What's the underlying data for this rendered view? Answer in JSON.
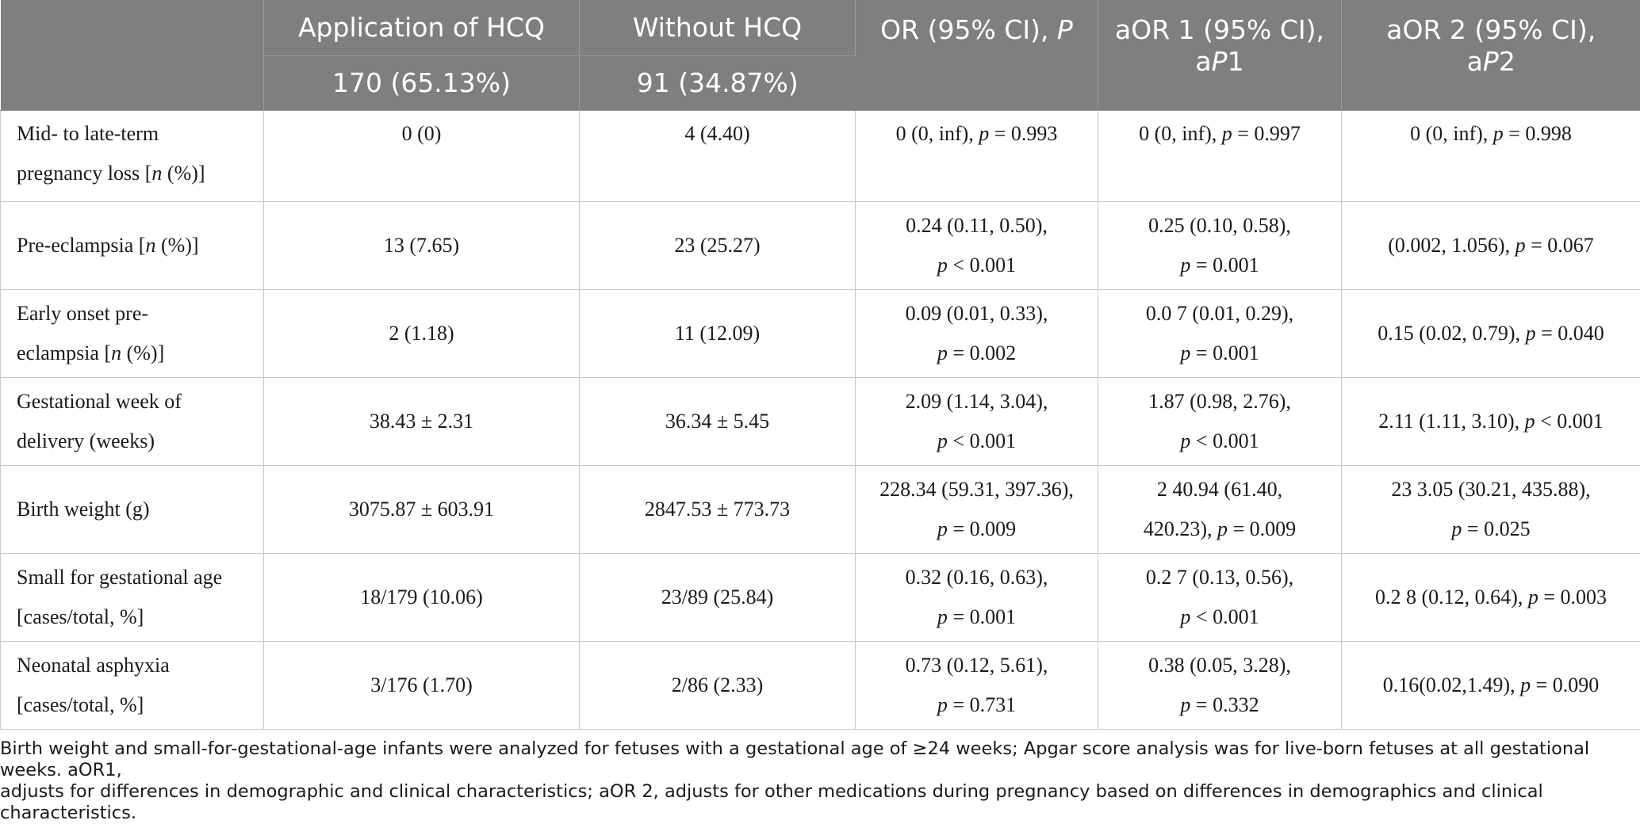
{
  "header": {
    "col0": "",
    "col1_title": "Application of HCQ",
    "col1_sub": "170 (65.13%)",
    "col2_title": "Without HCQ",
    "col2_sub": "91 (34.87%)",
    "col3": {
      "a": "OR (95% CI), ",
      "b": "P"
    },
    "col4": {
      "a": "aOR 1 (95% CI),",
      "b": "a",
      "c": "P",
      "d": "1"
    },
    "col5": {
      "a": "aOR 2 (95% CI),",
      "b": "a",
      "c": "P",
      "d": "2"
    }
  },
  "rows": [
    {
      "label": [
        "Mid- to late-term",
        "pregnancy loss [",
        "n",
        " (%)]"
      ],
      "hcq": "0 (0)",
      "without": "4 (4.40)",
      "or": [
        "0 (0, inf), ",
        "p",
        " = 0.993"
      ],
      "aor1": [
        "0 (0, inf), ",
        "p",
        " = 0.997"
      ],
      "aor2": [
        "0 (0, inf), ",
        "p",
        " = 0.998"
      ]
    },
    {
      "label": [
        "Pre-eclampsia [",
        "n",
        " (%)]"
      ],
      "hcq": "13 (7.65)",
      "without": "23 (25.27)",
      "or": [
        "0.24 (0.11, 0.50),",
        "p",
        " < 0.001"
      ],
      "aor1": [
        "0.25 (0.10, 0.58),",
        "p",
        " = 0.001"
      ],
      "aor2": [
        "(0.002, 1.056), ",
        "p",
        " = 0.067"
      ]
    },
    {
      "label": [
        "Early onset pre-",
        "eclampsia [",
        "n",
        " (%)]"
      ],
      "hcq": "2 (1.18)",
      "without": "11 (12.09)",
      "or": [
        "0.09 (0.01, 0.33),",
        "p",
        " = 0.002"
      ],
      "aor1": [
        "0.0 7 (0.01, 0.29),",
        "p",
        " = 0.001"
      ],
      "aor2": [
        "0.15 (0.02, 0.79), ",
        "p",
        " = 0.040"
      ]
    },
    {
      "label": [
        "Gestational week of",
        "delivery (weeks)"
      ],
      "hcq": "38.43 ± 2.31",
      "without": "36.34 ± 5.45",
      "or": [
        "2.09 (1.14, 3.04),",
        "p",
        " < 0.001"
      ],
      "aor1": [
        "1.87 (0.98, 2.76),",
        "p",
        " < 0.001"
      ],
      "aor2": [
        "2.11 (1.11, 3.10), ",
        "p",
        " < 0.001"
      ]
    },
    {
      "label": [
        "Birth weight (g)"
      ],
      "hcq": "3075.87 ± 603.91",
      "without": "2847.53 ± 773.73",
      "or": [
        "228.34 (59.31, 397.36),",
        "p",
        " = 0.009"
      ],
      "aor1": [
        "2 40.94 (61.40,",
        "420.23), ",
        "p",
        " = 0.009"
      ],
      "aor2": [
        "23 3.05 (30.21, 435.88),",
        "p",
        " = 0.025"
      ]
    },
    {
      "label": [
        "Small for gestational age",
        "[cases/total, %]"
      ],
      "hcq": "18/179 (10.06)",
      "without": "23/89 (25.84)",
      "or": [
        "0.32 (0.16, 0.63),",
        "p",
        " = 0.001"
      ],
      "aor1": [
        "0.2 7 (0.13, 0.56),",
        "p",
        " < 0.001"
      ],
      "aor2": [
        "0.2 8 (0.12, 0.64), ",
        "p",
        " = 0.003"
      ]
    },
    {
      "label": [
        "Neonatal asphyxia",
        "[cases/total, %]"
      ],
      "hcq": "3/176 (1.70)",
      "without": "2/86 (2.33)",
      "or": [
        "0.73 (0.12, 5.61),",
        "p",
        " = 0.731"
      ],
      "aor1": [
        "0.38 (0.05, 3.28),",
        "p",
        " = 0.332"
      ],
      "aor2": [
        "0.16(0.02,1.49), ",
        "p",
        " = 0.090"
      ]
    }
  ],
  "footnote": [
    "Birth weight and small-for-gestational-age infants were analyzed for fetuses with a gestational age of ≥24 weeks; Apgar score analysis was for live-born fetuses at all gestational weeks. aOR1,",
    "adjusts for differences in demographic and clinical characteristics; aOR 2, adjusts for other medications during pregnancy based on differences in demographics and clinical characteristics."
  ]
}
